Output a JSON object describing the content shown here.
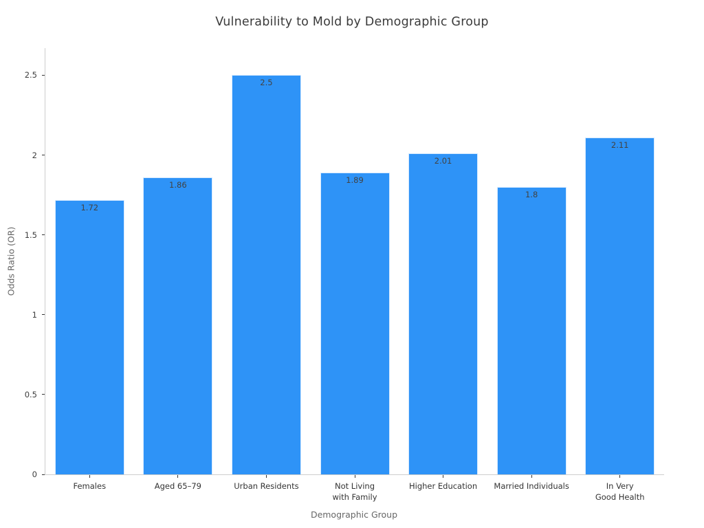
{
  "title": "Vulnerability to Mold by Demographic Group",
  "chart_data": {
    "type": "bar",
    "title": "Vulnerability to Mold by Demographic Group",
    "xlabel": "Demographic Group",
    "ylabel": "Odds Ratio (OR)",
    "categories": [
      "Females",
      "Aged 65–79",
      "Urban Residents",
      "Not Living\nwith Family",
      "Higher Education",
      "Married Individuals",
      "In Very\nGood Health"
    ],
    "values": [
      1.72,
      1.86,
      2.5,
      1.89,
      2.01,
      1.8,
      2.11
    ],
    "value_labels": [
      "1.72",
      "1.86",
      "2.5",
      "1.89",
      "2.01",
      "1.8",
      "2.11"
    ],
    "yticks": [
      0,
      0.5,
      1,
      1.5,
      2,
      2.5
    ],
    "ytick_labels": [
      "0",
      "0.5",
      "1",
      "1.5",
      "2",
      "2.5"
    ],
    "ylim": [
      0,
      2.67
    ],
    "grid": false,
    "legend": null,
    "bar_color": "#2e93f7",
    "bar_edge_color": "#d6eaff",
    "tick_color": "#333333",
    "spine_color": "#cdcdcd",
    "value_label_color": "#424242"
  }
}
